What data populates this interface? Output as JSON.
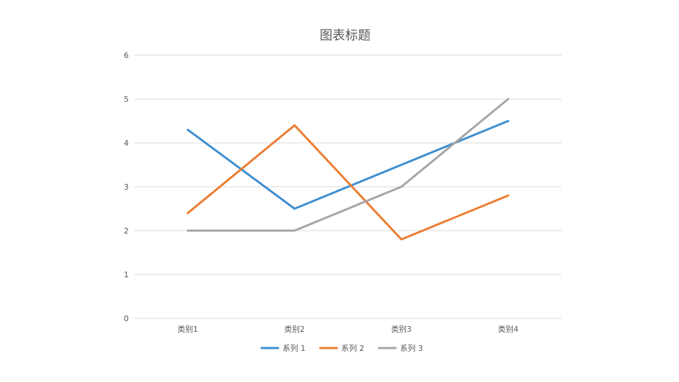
{
  "chart_data": {
    "type": "line",
    "title": "图表标题",
    "xlabel": "",
    "ylabel": "",
    "categories": [
      "类别1",
      "类别2",
      "类别3",
      "类别4"
    ],
    "ylim": [
      0,
      6
    ],
    "yticks": [
      0,
      1,
      2,
      3,
      4,
      5,
      6
    ],
    "grid": true,
    "legend_position": "bottom",
    "series": [
      {
        "name": "系列 1",
        "values": [
          4.3,
          2.5,
          3.5,
          4.5
        ],
        "color": "#3e8ed0"
      },
      {
        "name": "系列 2",
        "values": [
          2.4,
          4.4,
          1.8,
          2.8
        ],
        "color": "#ed7d31"
      },
      {
        "name": "系列 3",
        "values": [
          2.0,
          2.0,
          3.0,
          5.0
        ],
        "color": "#a5a5a5"
      }
    ]
  }
}
